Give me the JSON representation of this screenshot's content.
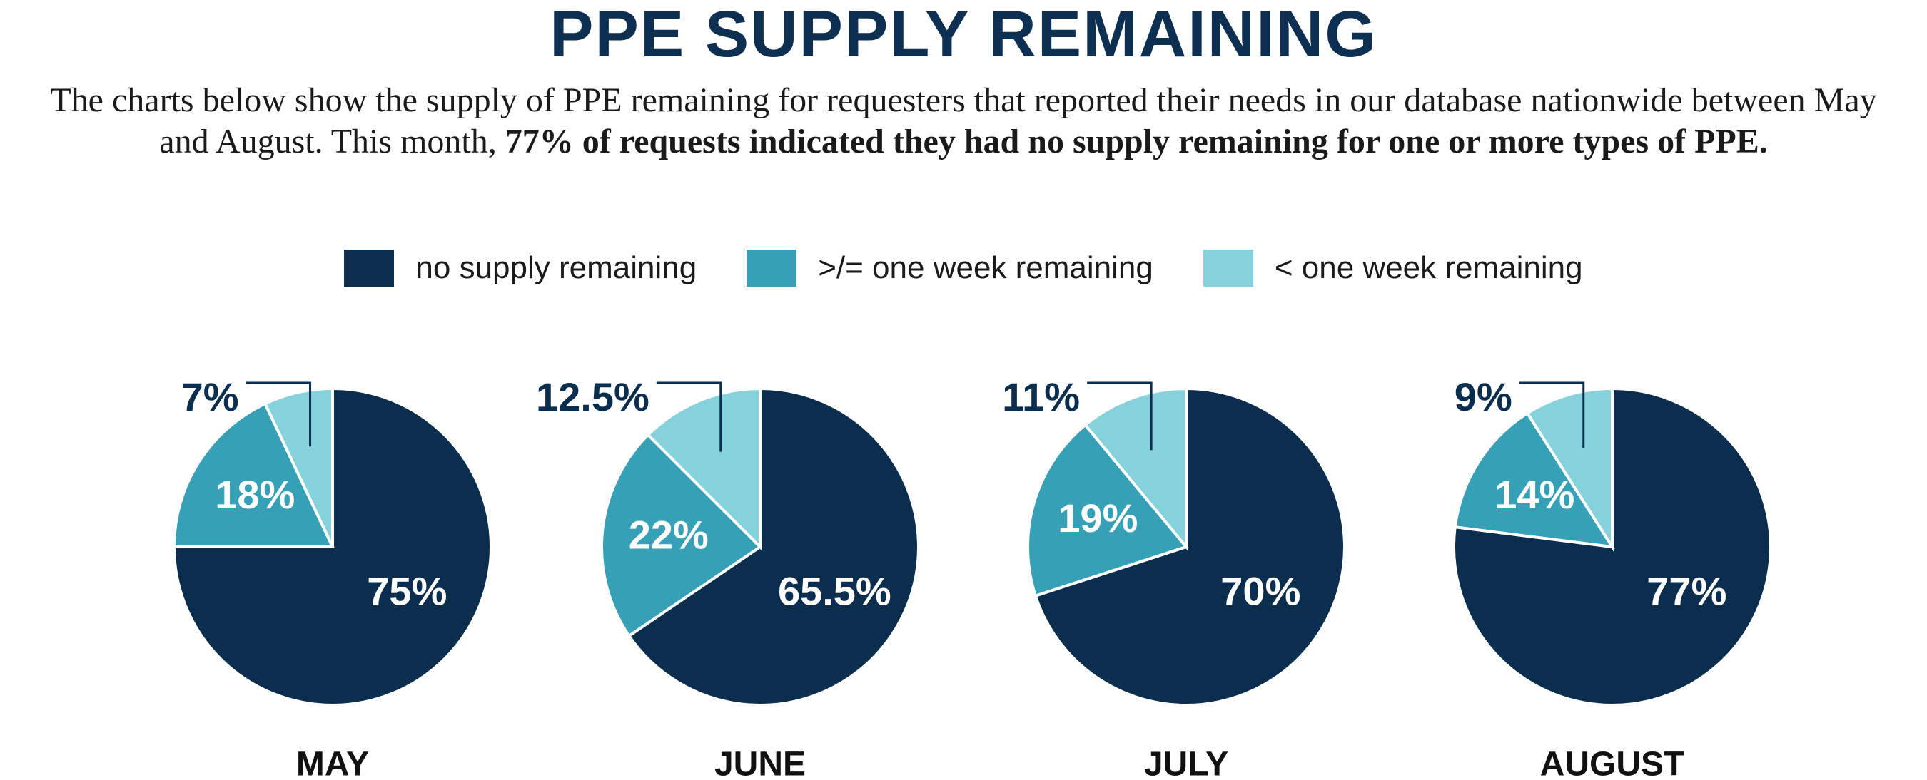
{
  "title": "PPE SUPPLY REMAINING",
  "description": "The charts below show the supply of PPE remaining for requesters that reported their needs in our database nationwide between May and August. This month, ",
  "description_bold": "77% of requests indicated they had no supply remaining for one or more types of PPE.",
  "chart_data": [
    {
      "type": "pie",
      "title": "MAY",
      "categories": [
        "no supply remaining",
        ">/= one week remaining",
        "< one week remaining"
      ],
      "values": [
        75,
        18,
        7
      ],
      "value_labels": [
        "75%",
        "18%",
        "7%"
      ],
      "colors": [
        "#0b2d4e",
        "#35a0b6",
        "#86d2dc"
      ]
    },
    {
      "type": "pie",
      "title": "JUNE",
      "categories": [
        "no supply remaining",
        ">/= one week remaining",
        "< one week remaining"
      ],
      "values": [
        65.5,
        22,
        12.5
      ],
      "value_labels": [
        "65.5%",
        "22%",
        "12.5%"
      ],
      "colors": [
        "#0b2d4e",
        "#35a0b6",
        "#86d2dc"
      ]
    },
    {
      "type": "pie",
      "title": "JULY",
      "categories": [
        "no supply remaining",
        ">/= one week remaining",
        "< one week remaining"
      ],
      "values": [
        70,
        19,
        11
      ],
      "value_labels": [
        "70%",
        "19%",
        "11%"
      ],
      "colors": [
        "#0b2d4e",
        "#35a0b6",
        "#86d2dc"
      ]
    },
    {
      "type": "pie",
      "title": "AUGUST",
      "categories": [
        "no supply remaining",
        ">/= one week remaining",
        "< one week remaining"
      ],
      "values": [
        77,
        14,
        9
      ],
      "value_labels": [
        "77%",
        "14%",
        "9%"
      ],
      "colors": [
        "#0b2d4e",
        "#35a0b6",
        "#86d2dc"
      ]
    }
  ]
}
